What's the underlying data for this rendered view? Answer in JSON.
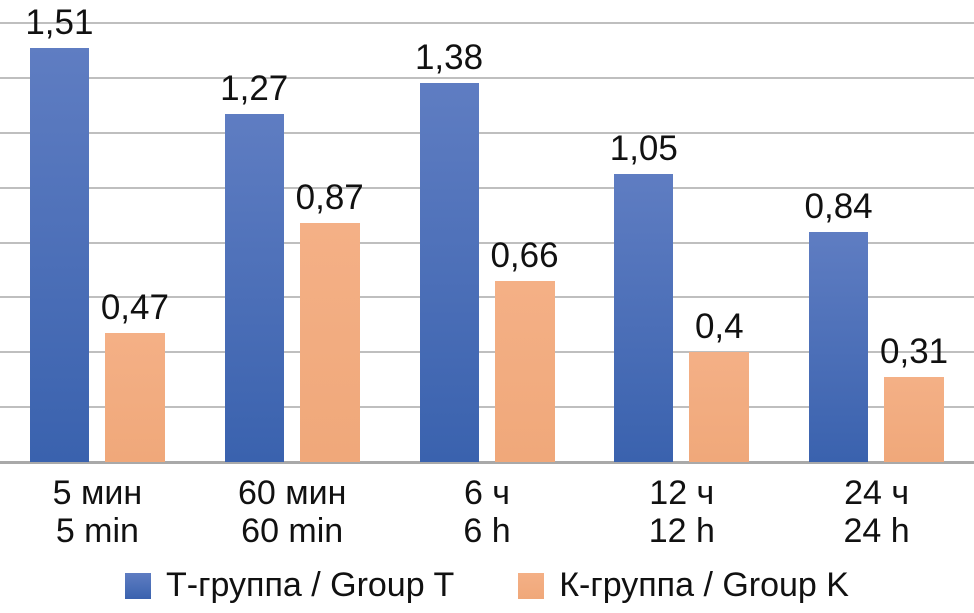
{
  "chart_data": {
    "type": "bar",
    "title": "",
    "categories": [
      {
        "ru": "5 мин",
        "en": "5 min"
      },
      {
        "ru": "60 мин",
        "en": "60 min"
      },
      {
        "ru": "6 ч",
        "en": "6 h"
      },
      {
        "ru": "12 ч",
        "en": "12 h"
      },
      {
        "ru": "24 ч",
        "en": "24 h"
      }
    ],
    "series": [
      {
        "name": "Т-группа / Group T",
        "values": [
          1.51,
          1.27,
          1.38,
          1.05,
          0.84
        ],
        "labels": [
          "1,51",
          "1,27",
          "1,38",
          "1,05",
          "0,84"
        ],
        "color_top": "#5f7dc2",
        "color_bottom": "#3a62ae"
      },
      {
        "name": "К-группа / Group K",
        "values": [
          0.47,
          0.87,
          0.66,
          0.4,
          0.31
        ],
        "labels": [
          "0,47",
          "0,87",
          "0,66",
          "0,4",
          "0,31"
        ],
        "color_top": "#f4b086",
        "color_bottom": "#f0a87a"
      }
    ],
    "ylim": [
      0,
      1.6
    ],
    "gridline_step": 0.2,
    "grid": true,
    "y_axis_labels_visible": false,
    "legend_position": "bottom",
    "decimal_separator": ",",
    "gridline_color": "#bfbfbf",
    "axis_line_color": "#a9a9a9",
    "text_color": "#111111"
  },
  "legend": {
    "items": [
      {
        "label": "Т-группа / Group T"
      },
      {
        "label": "К-группа / Group K"
      }
    ]
  }
}
